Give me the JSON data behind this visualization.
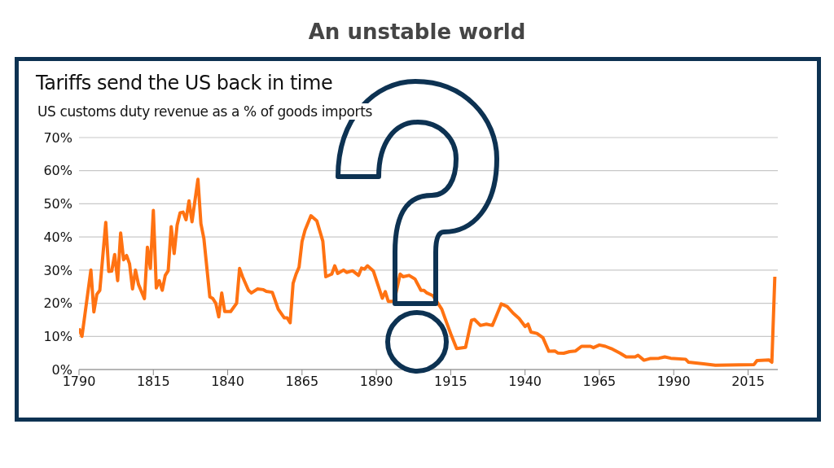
{
  "chart_data": {
    "type": "line",
    "title": "Tariffs send the US back in time",
    "subtitle": "US customs duty revenue as a % of goods imports",
    "annotations": [
      "An unstable world"
    ],
    "x": [
      1790,
      1791,
      1794,
      1795,
      1796,
      1797,
      1799,
      1800,
      1801,
      1802,
      1803,
      1804,
      1805,
      1806,
      1807,
      1808,
      1809,
      1810,
      1812,
      1813,
      1814,
      1815,
      1816,
      1817,
      1818,
      1819,
      1820,
      1821,
      1822,
      1823,
      1824,
      1825,
      1826,
      1827,
      1828,
      1830,
      1831,
      1832,
      1834,
      1835,
      1836,
      1837,
      1838,
      1839,
      1841,
      1843,
      1844,
      1845,
      1847,
      1848,
      1850,
      1852,
      1853,
      1855,
      1857,
      1859,
      1860,
      1861,
      1862,
      1863,
      1864,
      1865,
      1866,
      1868,
      1870,
      1872,
      1873,
      1875,
      1876,
      1877,
      1879,
      1880,
      1882,
      1884,
      1885,
      1886,
      1887,
      1889,
      1892,
      1893,
      1894,
      1896,
      1898,
      1899,
      1901,
      1903,
      1905,
      1906,
      1907,
      1909,
      1912,
      1913,
      1915,
      1917,
      1920,
      1922,
      1923,
      1925,
      1927,
      1929,
      1930,
      1932,
      1934,
      1936,
      1938,
      1940,
      1941,
      1942,
      1944,
      1946,
      1948,
      1950,
      1951,
      1953,
      1955,
      1957,
      1959,
      1962,
      1963,
      1965,
      1967,
      1969,
      1972,
      1974,
      1977,
      1978,
      1980,
      1982,
      1985,
      1987,
      1989,
      1994,
      1995,
      2000,
      2004,
      2012,
      2017,
      2018,
      2022,
      2023,
      2024
    ],
    "series": [
      {
        "color": "#ff7212",
        "values": [
          12.4,
          10,
          30,
          17.4,
          22.7,
          23.9,
          44.4,
          29.6,
          29.7,
          34.7,
          26.8,
          41.2,
          33.1,
          34.4,
          31.9,
          24.3,
          30,
          25.7,
          21.4,
          36.9,
          30.5,
          48,
          24.6,
          26.8,
          23.9,
          28.4,
          29.8,
          43.1,
          35,
          43.6,
          47.3,
          47.5,
          45.2,
          50.9,
          44.6,
          57.4,
          44,
          39.5,
          21.9,
          21.4,
          20,
          15.9,
          23.1,
          17.5,
          17.5,
          20,
          30.5,
          28,
          23.9,
          23.1,
          24.3,
          24.1,
          23.6,
          23.3,
          18.2,
          15.6,
          15.6,
          14.1,
          26,
          28.8,
          30.9,
          38.6,
          42,
          46.4,
          44.8,
          38.7,
          28,
          28.8,
          31.3,
          29,
          30,
          29.3,
          29.8,
          28.4,
          30.6,
          30.3,
          31.3,
          29.7,
          21.5,
          23.5,
          20.6,
          20.6,
          28.8,
          28,
          28.4,
          27.3,
          23.9,
          23.9,
          23.1,
          22.3,
          18.2,
          15.7,
          10.8,
          6.3,
          6.7,
          14.9,
          15.1,
          13.3,
          13.7,
          13.3,
          15.4,
          19.8,
          19,
          17,
          15.4,
          13,
          13.7,
          11.3,
          10.9,
          9.6,
          5.5,
          5.6,
          5,
          4.9,
          5.4,
          5.6,
          7,
          7,
          6.6,
          7.4,
          7,
          6.3,
          4.9,
          3.8,
          3.8,
          4.3,
          2.8,
          3.3,
          3.4,
          3.8,
          3.4,
          3.1,
          2.2,
          1.7,
          1.3,
          1.4,
          1.5,
          2.7,
          2.9,
          2.2,
          28
        ]
      }
    ],
    "xlim": [
      1790,
      2025
    ],
    "xticks": [
      1790,
      1815,
      1840,
      1865,
      1890,
      1915,
      1940,
      1965,
      1990,
      2015
    ],
    "ylim": [
      0,
      70
    ],
    "yticks": [
      {
        "value": 0,
        "label": "0%"
      },
      {
        "value": 10,
        "label": "10%"
      },
      {
        "value": 20,
        "label": "20%"
      },
      {
        "value": 30,
        "label": "30%"
      },
      {
        "value": 40,
        "label": "40%"
      },
      {
        "value": 50,
        "label": "50%"
      },
      {
        "value": 60,
        "label": "60%"
      },
      {
        "value": 70,
        "label": "70%"
      }
    ],
    "grid": "y",
    "legend": false,
    "marker": "none",
    "line_style": "solid"
  }
}
